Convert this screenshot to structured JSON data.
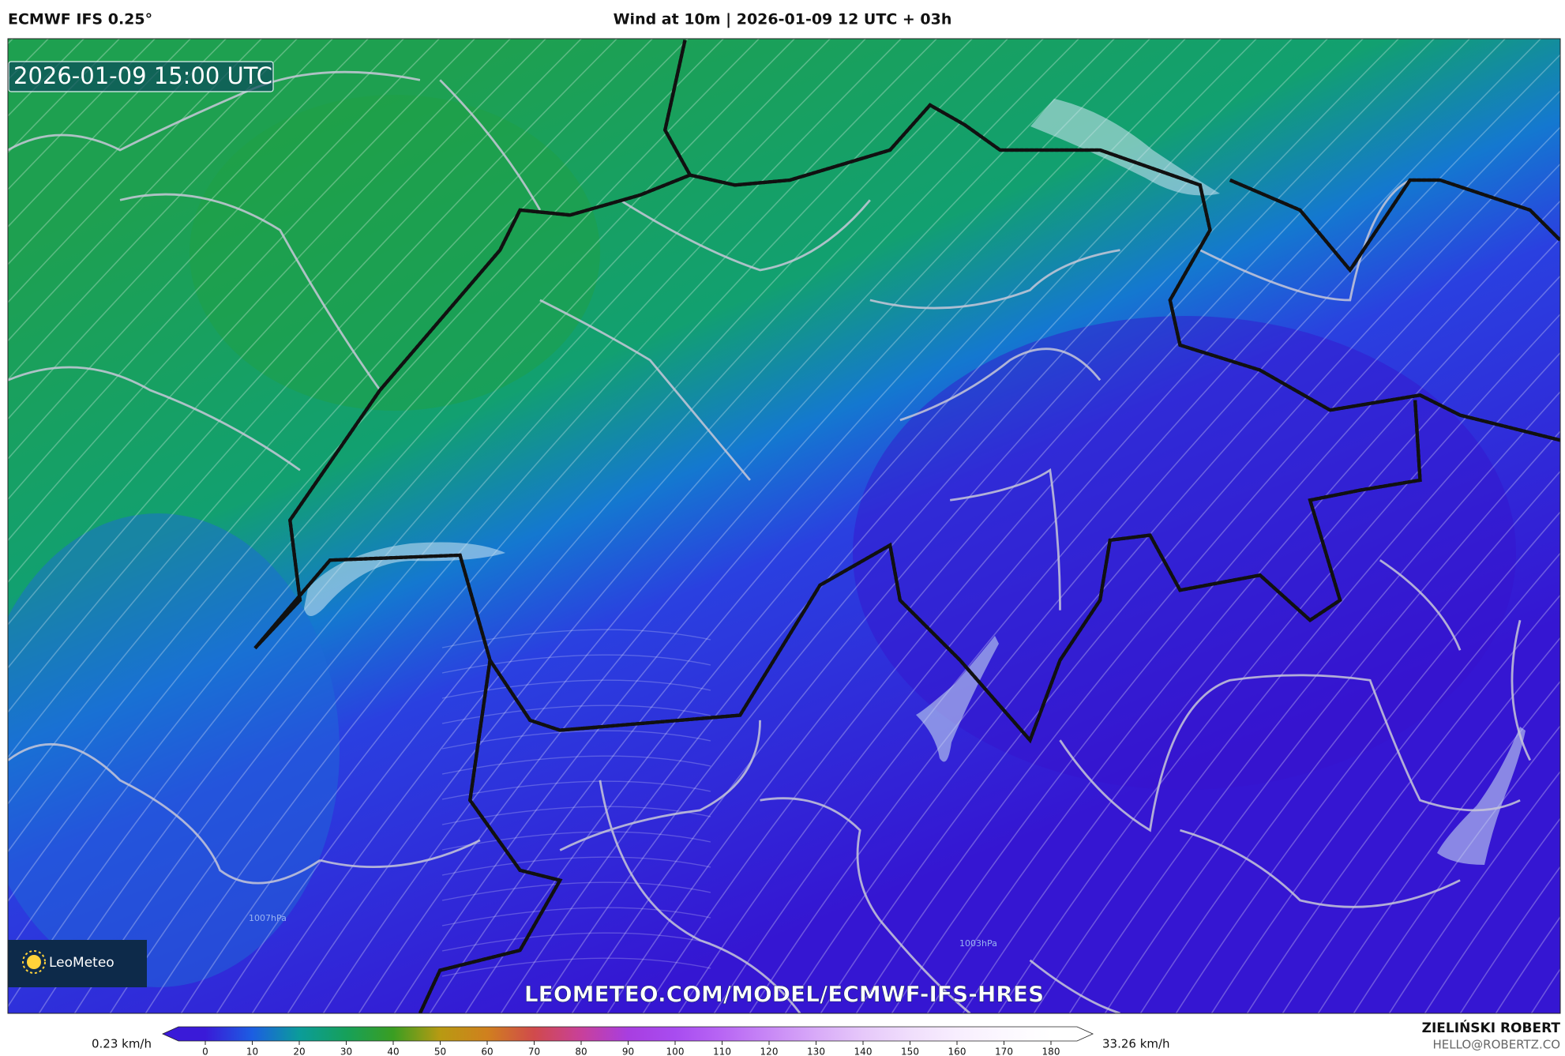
{
  "header": {
    "model": "ECMWF IFS 0.25°",
    "title": "Wind at 10m | 2026-01-09 12 UTC + 03h"
  },
  "map": {
    "timestamp": "2026-01-09 15:00 UTC",
    "logo": "LeoMeteo",
    "watermark": "LEOMETEO.COM/MODEL/ECMWF-IFS-HRES",
    "isobars": [
      "1007hPa",
      "1003hPa"
    ]
  },
  "colorbar": {
    "min_label": "0.23 km/h",
    "max_label": "33.26 km/h",
    "ticks": [
      0,
      10,
      20,
      30,
      40,
      50,
      60,
      70,
      80,
      90,
      100,
      110,
      120,
      130,
      140,
      150,
      160,
      170,
      180
    ],
    "colors": [
      "#3a1ad8",
      "#1c5ee2",
      "#0b9c9a",
      "#16a05a",
      "#3a9e22",
      "#b89a12",
      "#d0801e",
      "#d04a4c",
      "#c8409a",
      "#a83ee0",
      "#a84cf0",
      "#b866f4",
      "#c888f6",
      "#d8aaf8",
      "#e6c8fa",
      "#f0defc",
      "#f8eefe",
      "#fcf8ff",
      "#ffffff"
    ]
  },
  "footer": {
    "author": "ZIELIŃSKI ROBERT",
    "email": "HELLO@ROBERTZ.CO"
  }
}
